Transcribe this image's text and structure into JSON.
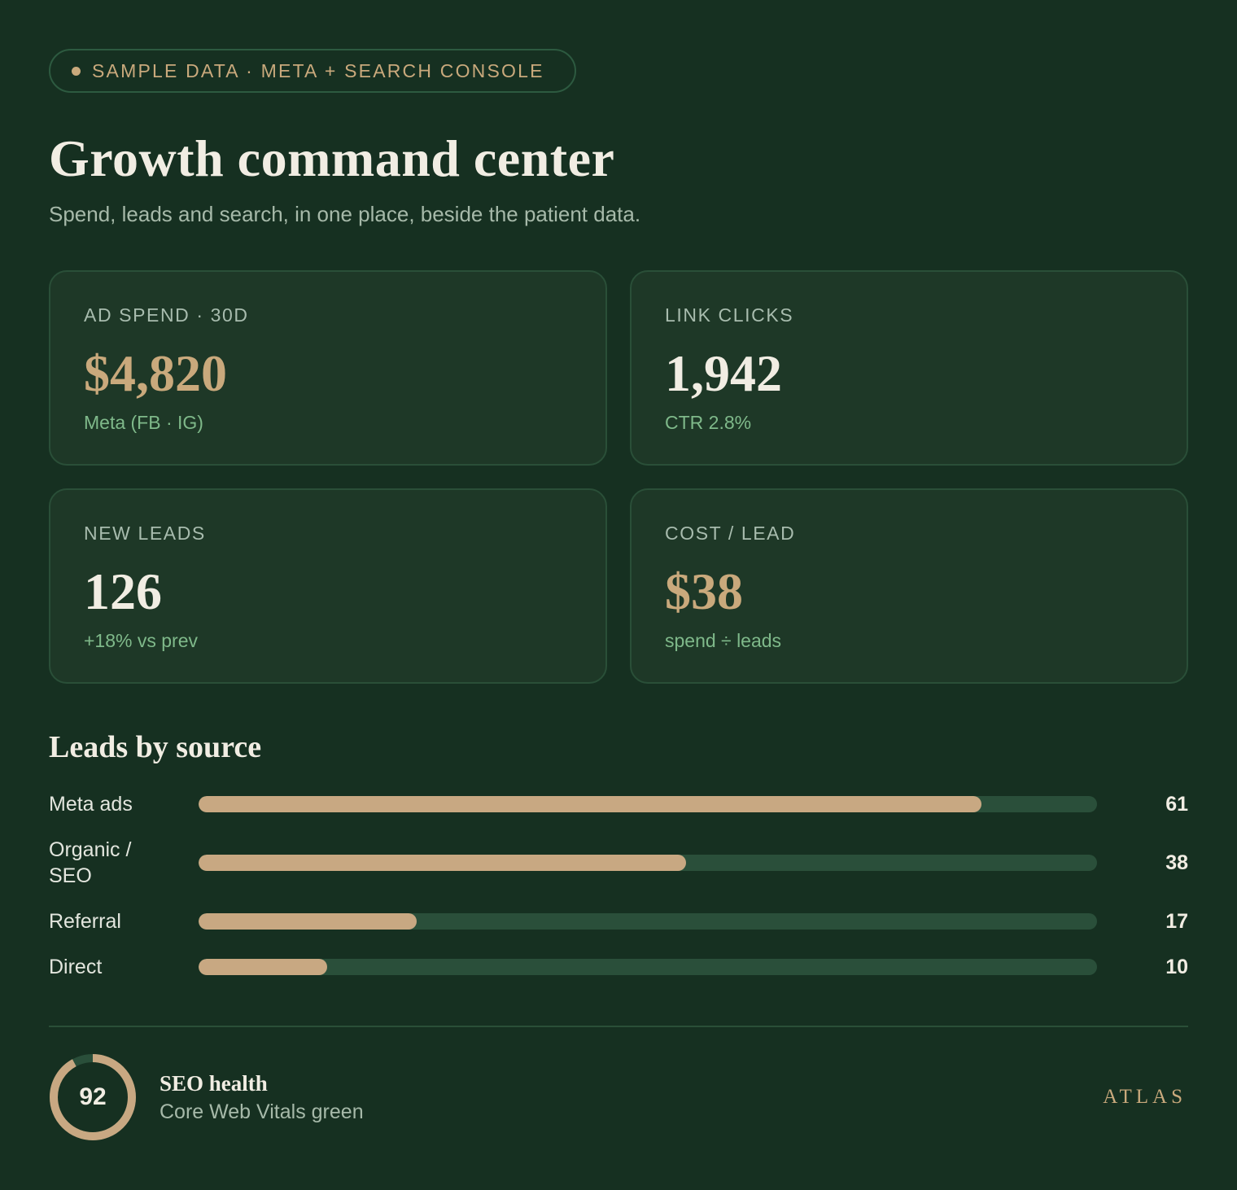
{
  "badge": {
    "text": "SAMPLE DATA · META + SEARCH CONSOLE"
  },
  "header": {
    "title": "Growth command center",
    "subtitle": "Spend, leads and search, in one place, beside the patient data."
  },
  "cards": [
    {
      "label": "AD SPEND · 30D",
      "value": "$4,820",
      "sub": "Meta (FB · IG)",
      "accent": "#c9a97c"
    },
    {
      "label": "LINK CLICKS",
      "value": "1,942",
      "sub": "CTR 2.8%",
      "accent": "#f1ede3"
    },
    {
      "label": "NEW LEADS",
      "value": "126",
      "sub": "+18% vs prev",
      "accent": "#f1ede3"
    },
    {
      "label": "COST / LEAD",
      "value": "$38",
      "sub": "spend ÷ leads",
      "accent": "#c9a97c"
    }
  ],
  "leads_by_source": {
    "title": "Leads by source",
    "max": 70,
    "rows": [
      {
        "label": "Meta ads",
        "value": 61,
        "display": "61"
      },
      {
        "label": "Organic / SEO",
        "value": 38,
        "display": "38"
      },
      {
        "label": "Referral",
        "value": 17,
        "display": "17"
      },
      {
        "label": "Direct",
        "value": 10,
        "display": "10"
      }
    ]
  },
  "seo": {
    "score": 92,
    "score_text": "92",
    "title": "SEO health",
    "subtitle": "Core Web Vitals green"
  },
  "brand": "ATLAS",
  "colors": {
    "background": "#163021",
    "card": "#1e3827",
    "gold": "#c9a97c",
    "positive": "#7fb98a",
    "track": "#2a4f3a"
  }
}
